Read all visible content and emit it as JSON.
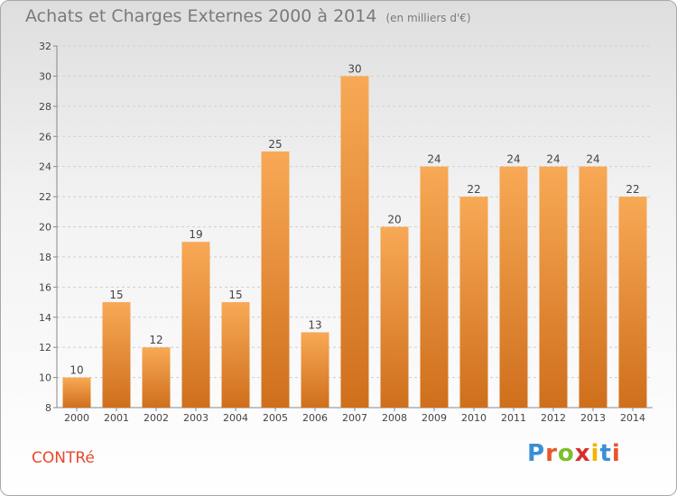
{
  "header": {
    "title": "Achats et Charges Externes 2000 à 2014",
    "subtitle": "(en milliers d'€)"
  },
  "footer": {
    "commune": "CONTRé",
    "logo_letters": [
      {
        "ch": "P",
        "color": "#3b8fd4"
      },
      {
        "ch": "r",
        "color": "#e8562a"
      },
      {
        "ch": "o",
        "color": "#7cbf2f"
      },
      {
        "ch": "x",
        "color": "#d62e2e"
      },
      {
        "ch": "i",
        "color": "#f4b400"
      },
      {
        "ch": "t",
        "color": "#3b8fd4"
      },
      {
        "ch": "i",
        "color": "#e8562a"
      }
    ]
  },
  "chart_data": {
    "type": "bar",
    "categories": [
      "2000",
      "2001",
      "2002",
      "2003",
      "2004",
      "2005",
      "2006",
      "2007",
      "2008",
      "2009",
      "2010",
      "2011",
      "2012",
      "2013",
      "2014"
    ],
    "values": [
      10,
      15,
      12,
      19,
      15,
      25,
      13,
      30,
      20,
      24,
      22,
      24,
      24,
      24,
      22
    ],
    "ylim": [
      8,
      32
    ],
    "yticks": [
      8,
      10,
      12,
      14,
      16,
      18,
      20,
      22,
      24,
      26,
      28,
      30,
      32
    ],
    "grid": true,
    "bar_color_top": "#f8a955",
    "bar_color_bottom": "#cf6f1c"
  }
}
